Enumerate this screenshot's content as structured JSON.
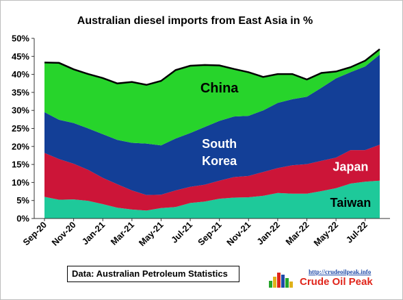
{
  "chart_data": {
    "type": "area",
    "stacked": true,
    "title": "Australian diesel imports from East Asia in %",
    "x": [
      "Sep-20",
      "Oct-20",
      "Nov-20",
      "Dec-20",
      "Jan-21",
      "Feb-21",
      "Mar-21",
      "Apr-21",
      "May-21",
      "Jun-21",
      "Jul-21",
      "Aug-21",
      "Sep-21",
      "Oct-21",
      "Nov-21",
      "Dec-21",
      "Jan-22",
      "Feb-22",
      "Mar-22",
      "Apr-22",
      "May-22",
      "Jun-22",
      "Jul-22",
      "Aug-22"
    ],
    "x_tick_labels": [
      "Sep-20",
      "Nov-20",
      "Jan-21",
      "Mar-21",
      "May-21",
      "Jul-21",
      "Sep-21",
      "Nov-21",
      "Jan-22",
      "Mar-22",
      "May-22",
      "Jul-22"
    ],
    "ylim": [
      0,
      50
    ],
    "y_ticks": [
      "0%",
      "5%",
      "10%",
      "15%",
      "20%",
      "25%",
      "30%",
      "35%",
      "40%",
      "45%",
      "50%"
    ],
    "series": [
      {
        "name": "Taiwan",
        "color": "#1ec99a",
        "values": [
          6.0,
          5.2,
          5.3,
          4.9,
          4.0,
          3.0,
          2.5,
          2.2,
          2.9,
          3.2,
          4.3,
          4.7,
          5.5,
          5.8,
          5.9,
          6.3,
          7.1,
          6.9,
          6.9,
          7.6,
          8.4,
          9.7,
          10.2,
          10.5
        ]
      },
      {
        "name": "Japan",
        "color": "#cc1538",
        "values": [
          12.2,
          11.3,
          9.9,
          8.6,
          7.3,
          6.5,
          5.3,
          4.3,
          3.7,
          4.6,
          4.5,
          4.7,
          5.0,
          5.7,
          5.9,
          6.6,
          6.9,
          7.9,
          8.2,
          8.4,
          8.5,
          9.3,
          8.8,
          10.0
        ]
      },
      {
        "name": "South Korea",
        "color": "#133f97",
        "values": [
          11.3,
          10.9,
          11.3,
          11.5,
          12.1,
          12.3,
          13.2,
          14.3,
          13.7,
          14.4,
          14.9,
          16.0,
          16.6,
          16.8,
          16.7,
          17.1,
          18.1,
          18.3,
          18.7,
          20.3,
          22.0,
          21.6,
          23.2,
          25.0
        ]
      },
      {
        "name": "China",
        "color": "#27d42b",
        "values": [
          13.8,
          15.8,
          14.9,
          15.1,
          15.6,
          15.7,
          16.9,
          16.3,
          17.9,
          19.0,
          18.7,
          17.2,
          15.4,
          13.2,
          12.1,
          9.3,
          8.0,
          7.0,
          4.8,
          4.1,
          1.9,
          1.4,
          1.6,
          1.5
        ]
      }
    ],
    "total_line_color": "#000000",
    "legend": "none",
    "annotations": [
      {
        "text": "China",
        "series": "China"
      },
      {
        "text": "South",
        "series": "South Korea"
      },
      {
        "text": "Korea",
        "series": "South Korea"
      },
      {
        "text": "Japan",
        "series": "Japan"
      },
      {
        "text": "Taiwan",
        "series": "Taiwan"
      }
    ],
    "grid": false
  },
  "source_note": "Data: Australian Petroleum Statistics",
  "brand": {
    "url": "http://crudeoilpeak.info",
    "name": "Crude Oil Peak"
  }
}
